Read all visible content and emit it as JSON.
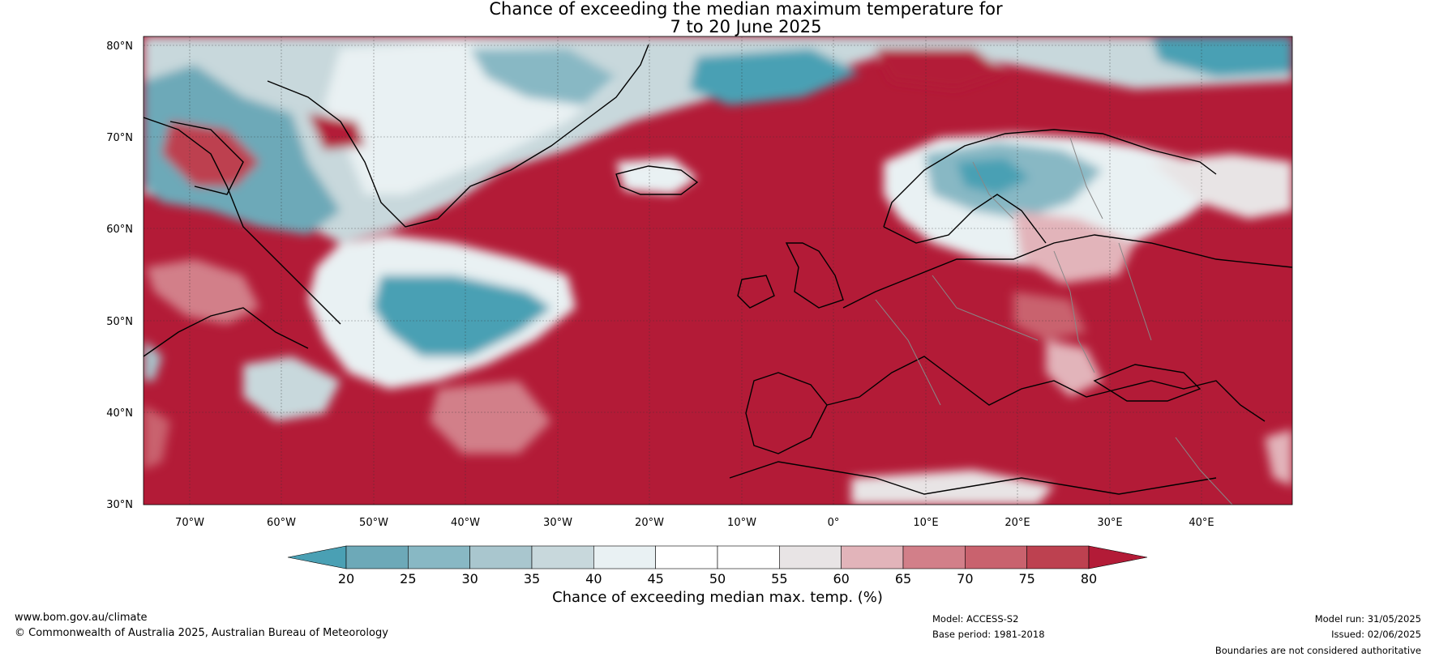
{
  "title_line1": "Chance of exceeding the median maximum temperature for",
  "title_line2": "7 to 20 June 2025",
  "lat_ticks": [
    "80°N",
    "70°N",
    "60°N",
    "50°N",
    "40°N",
    "30°N"
  ],
  "lon_ticks": [
    "70°W",
    "60°W",
    "50°W",
    "40°W",
    "30°W",
    "20°W",
    "10°W",
    "0°",
    "10°E",
    "20°E",
    "30°E",
    "40°E"
  ],
  "colorbar": {
    "title": "Chance of exceeding median max. temp. (%)",
    "ticks": [
      "20",
      "25",
      "30",
      "35",
      "40",
      "45",
      "50",
      "55",
      "60",
      "65",
      "70",
      "75",
      "80"
    ],
    "colors": [
      "#4aa0b4",
      "#6da9b8",
      "#88b8c4",
      "#a9c6ce",
      "#c8d8dc",
      "#e9f1f3",
      "#ffffff",
      "#ffffff",
      "#e8e4e5",
      "#e2b4ba",
      "#d27f89",
      "#c9626e",
      "#bd4150",
      "#b31b37"
    ],
    "under_color": "#4aa0b4",
    "over_color": "#b31b37"
  },
  "footer": {
    "website": "www.bom.gov.au/climate",
    "copyright": "© Commonwealth of Australia 2025, Australian Bureau of Meteorology",
    "model": "Model: ACCESS-S2",
    "base_period": "Base period: 1981-2018",
    "model_run": "Model run: 31/05/2025",
    "issued": "Issued: 02/06/2025",
    "disclaimer": "Boundaries are not considered authoritative"
  },
  "colors": {
    "hot": "#b31b37",
    "cool": "#4aa0b4",
    "coastline": "#000000",
    "borders": "#888888"
  }
}
